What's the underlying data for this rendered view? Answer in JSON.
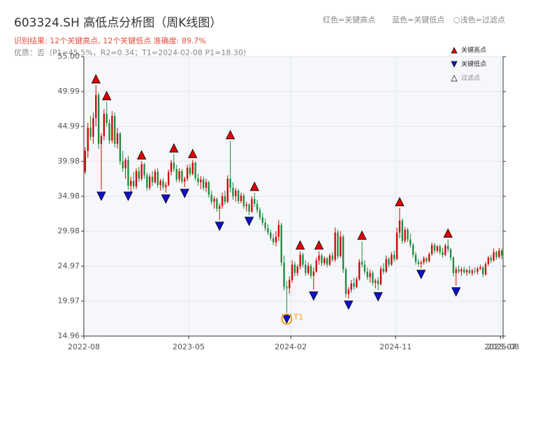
{
  "chart_data": {
    "type": "candlestick",
    "title": "603324.SH 高低点分析图（周K线图）",
    "subtitle": "识别结果: 12个关键高点, 12个关键低点   准确度: 89.7%",
    "note": "优质：否（P1=45.5%，R2=0.34；T1=2024-02-08 P1=18.30）",
    "top_legend": [
      "红色=关键高点",
      "蓝色=关键低点",
      "○浅色=过滤点"
    ],
    "legend": [
      {
        "name": "关键高点",
        "color": "#e00000"
      },
      {
        "name": "关键低点",
        "color": "#1010cc"
      },
      {
        "name": "过滤点",
        "color": "#cccccc"
      }
    ],
    "up_color": "#d40000",
    "down_color": "#1a8a3a",
    "xlim": [
      0,
      156
    ],
    "xticks": [
      {
        "value": 0,
        "label": "2022-08"
      },
      {
        "value": 39,
        "label": "2023-05"
      },
      {
        "value": 77,
        "label": "2024-02"
      },
      {
        "value": 116,
        "label": "2024-11"
      },
      {
        "value": 155,
        "label": "2025-07"
      },
      {
        "value": 156,
        "label": "2025-08"
      }
    ],
    "ylim": [
      14.96,
      55
    ],
    "yticks": [
      14.96,
      19.97,
      24.97,
      29.98,
      34.98,
      39.98,
      44.99,
      49.99,
      {
        "value": 55,
        "label": "55.00"
      }
    ],
    "grid": true,
    "t1_label": "T1",
    "t1_index": 75,
    "t1_color": "#f39c12",
    "key_high_indices": [
      4,
      8,
      21,
      33,
      40,
      54,
      63,
      80,
      87,
      103,
      117,
      135
    ],
    "key_low_indices": [
      6,
      16,
      30,
      37,
      50,
      61,
      75,
      85,
      98,
      109,
      125,
      138
    ],
    "candles": [
      [
        38.5,
        42.0,
        38.2,
        41.5
      ],
      [
        41.5,
        45.5,
        40.5,
        44.8
      ],
      [
        44.8,
        46.5,
        43.0,
        43.5
      ],
      [
        43.5,
        47.0,
        42.5,
        46.2
      ],
      [
        46.2,
        50.9,
        45.0,
        49.5
      ],
      [
        49.5,
        49.8,
        41.8,
        42.5
      ],
      [
        42.5,
        44.0,
        35.9,
        43.6
      ],
      [
        43.6,
        47.5,
        43.0,
        46.8
      ],
      [
        46.8,
        48.5,
        45.0,
        45.5
      ],
      [
        45.5,
        46.0,
        42.5,
        43.0
      ],
      [
        43.0,
        47.2,
        42.6,
        46.5
      ],
      [
        46.5,
        47.0,
        42.0,
        42.5
      ],
      [
        42.5,
        44.8,
        41.8,
        44.0
      ],
      [
        44.0,
        44.2,
        39.5,
        40.0
      ],
      [
        40.0,
        41.5,
        38.5,
        39.0
      ],
      [
        39.0,
        40.5,
        37.5,
        40.2
      ],
      [
        40.2,
        40.8,
        35.9,
        36.5
      ],
      [
        36.5,
        37.8,
        35.5,
        37.2
      ],
      [
        37.2,
        38.5,
        36.0,
        36.4
      ],
      [
        36.4,
        39.0,
        36.0,
        38.6
      ],
      [
        38.6,
        39.2,
        37.0,
        37.5
      ],
      [
        37.5,
        40.0,
        37.2,
        39.6
      ],
      [
        39.6,
        39.8,
        37.5,
        38.0
      ],
      [
        38.0,
        38.4,
        35.8,
        36.2
      ],
      [
        36.2,
        38.2,
        35.9,
        37.8
      ],
      [
        37.8,
        38.6,
        36.5,
        37.0
      ],
      [
        37.0,
        38.9,
        36.8,
        38.5
      ],
      [
        38.5,
        39.0,
        36.2,
        36.6
      ],
      [
        36.6,
        37.5,
        35.8,
        37.2
      ],
      [
        37.2,
        37.6,
        35.9,
        36.3
      ],
      [
        36.3,
        37.0,
        35.5,
        36.6
      ],
      [
        36.6,
        38.8,
        36.4,
        38.5
      ],
      [
        38.5,
        40.2,
        38.0,
        39.8
      ],
      [
        39.8,
        41.0,
        38.5,
        38.9
      ],
      [
        38.9,
        39.5,
        37.0,
        37.4
      ],
      [
        37.4,
        39.0,
        37.0,
        38.6
      ],
      [
        38.6,
        38.9,
        36.8,
        37.1
      ],
      [
        37.1,
        37.8,
        36.3,
        37.5
      ],
      [
        37.5,
        39.5,
        37.2,
        39.1
      ],
      [
        39.1,
        39.6,
        37.8,
        38.2
      ],
      [
        38.2,
        40.2,
        38.0,
        39.8
      ],
      [
        39.8,
        40.0,
        37.2,
        37.6
      ],
      [
        37.6,
        38.2,
        36.5,
        37.0
      ],
      [
        37.0,
        37.9,
        36.0,
        37.4
      ],
      [
        37.4,
        37.8,
        35.8,
        36.2
      ],
      [
        36.2,
        37.5,
        35.6,
        37.0
      ],
      [
        37.0,
        37.2,
        34.8,
        35.2
      ],
      [
        35.2,
        35.8,
        33.8,
        34.2
      ],
      [
        34.2,
        35.0,
        33.2,
        34.6
      ],
      [
        34.6,
        34.8,
        32.8,
        33.2
      ],
      [
        33.2,
        34.0,
        31.6,
        33.6
      ],
      [
        33.6,
        35.5,
        33.2,
        35.0
      ],
      [
        35.0,
        35.8,
        33.8,
        34.2
      ],
      [
        34.2,
        38.0,
        34.0,
        37.5
      ],
      [
        37.5,
        42.9,
        35.5,
        36.2
      ],
      [
        36.2,
        37.0,
        34.5,
        35.0
      ],
      [
        35.0,
        36.2,
        34.2,
        35.8
      ],
      [
        35.8,
        36.0,
        33.9,
        34.3
      ],
      [
        34.3,
        35.5,
        34.0,
        35.1
      ],
      [
        35.1,
        35.4,
        33.2,
        33.6
      ],
      [
        33.6,
        34.2,
        32.8,
        33.8
      ],
      [
        33.8,
        34.0,
        32.3,
        32.8
      ],
      [
        32.8,
        35.0,
        32.6,
        34.6
      ],
      [
        34.6,
        35.5,
        33.5,
        33.9
      ],
      [
        33.9,
        34.5,
        32.6,
        33.0
      ],
      [
        33.0,
        33.4,
        31.6,
        32.0
      ],
      [
        32.0,
        32.6,
        30.8,
        31.2
      ],
      [
        31.2,
        31.8,
        30.0,
        30.4
      ],
      [
        30.4,
        31.0,
        29.4,
        29.8
      ],
      [
        29.8,
        30.2,
        28.6,
        29.0
      ],
      [
        29.0,
        29.6,
        28.0,
        28.4
      ],
      [
        28.4,
        30.0,
        27.8,
        29.2
      ],
      [
        29.2,
        31.6,
        28.6,
        30.9
      ],
      [
        30.9,
        31.2,
        25.0,
        25.5
      ],
      [
        25.5,
        26.5,
        21.5,
        22.0
      ],
      [
        22.0,
        22.8,
        18.3,
        21.8
      ],
      [
        21.8,
        23.5,
        21.0,
        23.0
      ],
      [
        23.0,
        25.8,
        22.6,
        25.2
      ],
      [
        25.2,
        25.6,
        23.5,
        24.0
      ],
      [
        24.0,
        25.2,
        23.6,
        24.9
      ],
      [
        24.9,
        27.1,
        24.5,
        26.6
      ],
      [
        26.6,
        26.9,
        24.8,
        25.2
      ],
      [
        25.2,
        25.8,
        23.6,
        24.0
      ],
      [
        24.0,
        25.5,
        23.7,
        25.0
      ],
      [
        25.0,
        25.3,
        23.2,
        23.6
      ],
      [
        23.6,
        24.8,
        21.6,
        24.2
      ],
      [
        24.2,
        26.2,
        24.0,
        25.8
      ],
      [
        25.8,
        27.1,
        25.2,
        26.5
      ],
      [
        26.5,
        26.8,
        25.0,
        25.4
      ],
      [
        25.4,
        26.4,
        25.1,
        26.1
      ],
      [
        26.1,
        26.3,
        24.8,
        25.2
      ],
      [
        25.2,
        26.8,
        25.0,
        26.5
      ],
      [
        26.5,
        27.0,
        25.6,
        25.9
      ],
      [
        25.9,
        30.5,
        25.6,
        29.8
      ],
      [
        29.8,
        30.2,
        26.0,
        26.4
      ],
      [
        26.4,
        30.0,
        26.2,
        29.2
      ],
      [
        29.2,
        29.5,
        24.0,
        24.5
      ],
      [
        24.5,
        24.8,
        20.5,
        21.0
      ],
      [
        21.0,
        22.0,
        20.3,
        21.6
      ],
      [
        21.6,
        23.0,
        21.2,
        22.5
      ],
      [
        22.5,
        23.3,
        21.6,
        22.0
      ],
      [
        22.0,
        23.5,
        21.8,
        23.1
      ],
      [
        23.1,
        26.0,
        22.9,
        25.6
      ],
      [
        25.6,
        28.5,
        24.8,
        25.2
      ],
      [
        25.2,
        25.8,
        23.8,
        24.2
      ],
      [
        24.2,
        24.8,
        23.0,
        23.4
      ],
      [
        23.4,
        24.5,
        22.6,
        24.0
      ],
      [
        24.0,
        24.3,
        22.2,
        22.6
      ],
      [
        22.6,
        23.2,
        21.8,
        22.9
      ],
      [
        22.9,
        23.4,
        21.5,
        22.4
      ],
      [
        22.4,
        25.0,
        22.2,
        24.6
      ],
      [
        24.6,
        25.4,
        23.8,
        24.2
      ],
      [
        24.2,
        26.5,
        24.0,
        26.0
      ],
      [
        26.0,
        26.3,
        24.8,
        25.2
      ],
      [
        25.2,
        27.0,
        25.0,
        26.6
      ],
      [
        26.6,
        27.2,
        25.6,
        26.0
      ],
      [
        26.0,
        30.5,
        25.8,
        29.8
      ],
      [
        29.8,
        33.3,
        29.0,
        31.5
      ],
      [
        31.5,
        31.8,
        28.2,
        28.6
      ],
      [
        28.6,
        30.6,
        28.3,
        30.2
      ],
      [
        30.2,
        30.5,
        28.4,
        28.8
      ],
      [
        28.8,
        29.6,
        27.6,
        28.0
      ],
      [
        28.0,
        28.3,
        26.2,
        26.6
      ],
      [
        26.6,
        27.0,
        25.2,
        25.6
      ],
      [
        25.6,
        26.0,
        24.9,
        25.3
      ],
      [
        25.3,
        25.8,
        24.7,
        25.5
      ],
      [
        25.5,
        26.4,
        25.2,
        26.1
      ],
      [
        26.1,
        26.3,
        25.4,
        25.7
      ],
      [
        25.7,
        27.0,
        25.5,
        26.7
      ],
      [
        26.7,
        28.4,
        26.5,
        28.0
      ],
      [
        28.0,
        28.3,
        26.8,
        27.2
      ],
      [
        27.2,
        28.0,
        26.9,
        27.8
      ],
      [
        27.8,
        28.1,
        26.6,
        27.0
      ],
      [
        27.0,
        27.6,
        26.2,
        26.6
      ],
      [
        26.6,
        28.2,
        26.4,
        27.9
      ],
      [
        27.9,
        28.8,
        27.0,
        27.4
      ],
      [
        27.4,
        27.6,
        25.8,
        26.2
      ],
      [
        26.2,
        26.4,
        23.5,
        24.0
      ],
      [
        24.0,
        24.9,
        22.2,
        24.5
      ],
      [
        24.5,
        25.1,
        23.9,
        24.2
      ],
      [
        24.2,
        24.8,
        23.6,
        24.5
      ],
      [
        24.5,
        24.9,
        23.9,
        24.1
      ],
      [
        24.1,
        24.6,
        23.6,
        24.4
      ],
      [
        24.4,
        25.0,
        23.8,
        24.0
      ],
      [
        24.0,
        24.6,
        23.6,
        24.3
      ],
      [
        24.3,
        24.8,
        23.9,
        24.2
      ],
      [
        24.2,
        24.9,
        23.8,
        24.6
      ],
      [
        24.6,
        25.2,
        24.4,
        24.8
      ],
      [
        24.8,
        25.0,
        23.4,
        23.8
      ],
      [
        23.8,
        25.6,
        23.6,
        25.3
      ],
      [
        25.3,
        26.4,
        25.0,
        26.2
      ],
      [
        26.2,
        26.6,
        25.4,
        25.8
      ],
      [
        25.8,
        27.5,
        25.6,
        27.0
      ],
      [
        27.0,
        27.2,
        25.9,
        26.3
      ],
      [
        26.3,
        27.6,
        26.1,
        27.2
      ],
      [
        27.2,
        27.5,
        26.0,
        26.5
      ]
    ]
  }
}
